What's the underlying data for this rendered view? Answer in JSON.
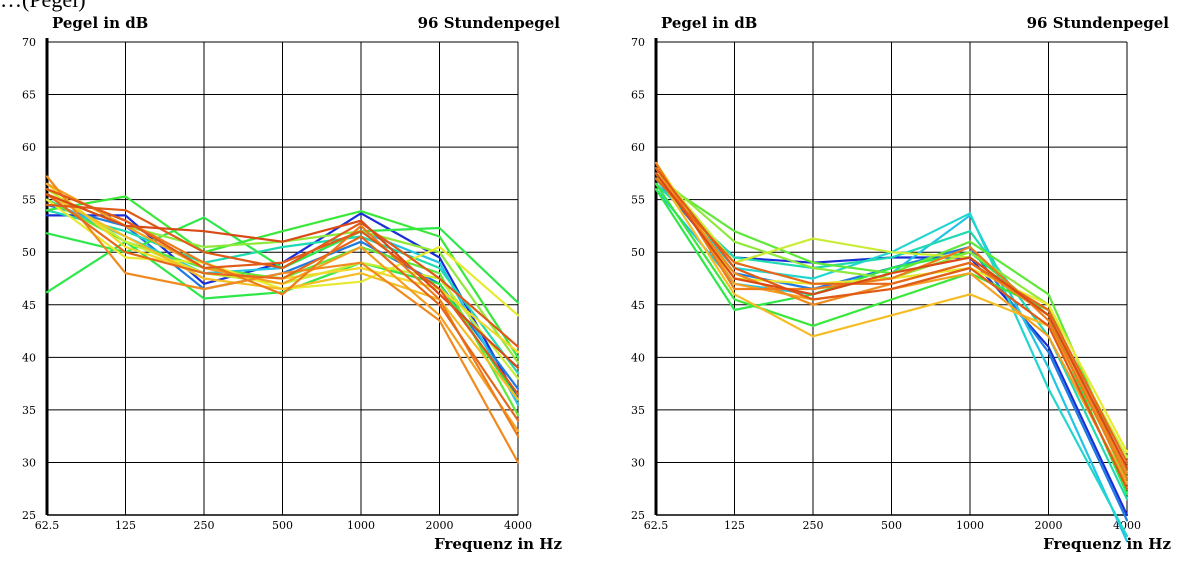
{
  "caption_fragment": "…(Pegel)",
  "chart_data": [
    {
      "type": "line",
      "title": "96 Stundenpegel",
      "ylabel": "Pegel in dB",
      "xlabel": "Frequenz in Hz",
      "categories": [
        "62.5",
        "125",
        "250",
        "500",
        "1000",
        "2000",
        "4000"
      ],
      "yticks": [
        "25",
        "30",
        "35",
        "40",
        "45",
        "50",
        "55",
        "60",
        "65",
        "70"
      ],
      "ylim": [
        25,
        70
      ],
      "grid": true,
      "series": [
        {
          "color": "#1a2fd6",
          "values": [
            53.5,
            53.5,
            47.0,
            49.0,
            53.7,
            49.5,
            36.0
          ]
        },
        {
          "color": "#1e7be0",
          "values": [
            54.5,
            52.5,
            46.5,
            48.0,
            51.0,
            47.0,
            37.0
          ]
        },
        {
          "color": "#22c3e6",
          "values": [
            55.0,
            51.5,
            48.0,
            48.5,
            52.0,
            49.0,
            35.5
          ]
        },
        {
          "color": "#1fd9b0",
          "values": [
            54.0,
            52.0,
            49.0,
            50.5,
            51.5,
            48.5,
            38.5
          ]
        },
        {
          "color": "#2ee84a",
          "values": [
            46.2,
            51.0,
            45.6,
            46.2,
            49.0,
            47.0,
            36.0
          ]
        },
        {
          "color": "#2ee84a",
          "values": [
            51.8,
            50.0,
            53.3,
            48.5,
            52.0,
            52.3,
            45.2
          ]
        },
        {
          "color": "#3ae83a",
          "values": [
            54.0,
            55.3,
            50.0,
            52.0,
            53.9,
            51.5,
            40.0
          ]
        },
        {
          "color": "#5fe83a",
          "values": [
            55.0,
            51.0,
            48.5,
            47.5,
            50.5,
            48.0,
            34.5
          ]
        },
        {
          "color": "#8fe83a",
          "values": [
            55.5,
            52.5,
            50.5,
            51.0,
            52.0,
            50.0,
            39.5
          ]
        },
        {
          "color": "#c9ec37",
          "values": [
            56.0,
            51.0,
            48.0,
            47.0,
            49.0,
            47.5,
            38.0
          ]
        },
        {
          "color": "#e8ea30",
          "values": [
            55.0,
            49.5,
            49.0,
            46.5,
            47.2,
            50.5,
            44.0
          ]
        },
        {
          "color": "#f2d82c",
          "values": [
            56.5,
            50.5,
            48.0,
            47.5,
            48.5,
            46.5,
            40.5
          ]
        },
        {
          "color": "#f5bd25",
          "values": [
            55.5,
            51.5,
            47.5,
            46.5,
            48.0,
            45.5,
            36.0
          ]
        },
        {
          "color": "#f5a021",
          "values": [
            56.5,
            52.5,
            48.5,
            47.0,
            50.5,
            44.0,
            33.0
          ]
        },
        {
          "color": "#f08a1e",
          "values": [
            57.2,
            48.0,
            46.5,
            48.0,
            49.0,
            43.5,
            30.0
          ]
        },
        {
          "color": "#ec7c1c",
          "values": [
            56.0,
            53.0,
            49.0,
            46.0,
            52.5,
            45.5,
            32.5
          ]
        },
        {
          "color": "#e6681a",
          "values": [
            55.5,
            50.0,
            48.0,
            47.5,
            51.5,
            45.0,
            34.0
          ]
        },
        {
          "color": "#e05a18",
          "values": [
            54.5,
            54.0,
            50.0,
            48.5,
            52.8,
            47.5,
            41.0
          ]
        },
        {
          "color": "#d94a16",
          "values": [
            55.5,
            52.5,
            52.0,
            51.0,
            53.0,
            46.0,
            39.0
          ]
        },
        {
          "color": "#e05a18",
          "values": [
            56.0,
            53.0,
            48.5,
            49.0,
            52.0,
            46.5,
            36.5
          ]
        }
      ]
    },
    {
      "type": "line",
      "title": "96 Stundenpegel",
      "ylabel": "Pegel in dB",
      "xlabel": "Frequenz in Hz",
      "categories": [
        "62.5",
        "125",
        "250",
        "500",
        "1000",
        "2000",
        "4000"
      ],
      "yticks": [
        "25",
        "30",
        "35",
        "40",
        "45",
        "50",
        "55",
        "60",
        "65",
        "70"
      ],
      "ylim": [
        25,
        70
      ],
      "grid": true,
      "series": [
        {
          "color": "#1a2fd6",
          "values": [
            56.5,
            49.5,
            49.0,
            49.5,
            49.5,
            41.0,
            25.0
          ]
        },
        {
          "color": "#1e7be0",
          "values": [
            57.0,
            48.0,
            46.5,
            48.5,
            50.5,
            40.5,
            24.5
          ]
        },
        {
          "color": "#22c3e6",
          "values": [
            56.0,
            47.0,
            46.0,
            48.0,
            53.5,
            39.0,
            22.5
          ]
        },
        {
          "color": "#22d6d0",
          "values": [
            57.0,
            48.5,
            47.5,
            50.0,
            53.7,
            37.0,
            23.0
          ]
        },
        {
          "color": "#1fd9b0",
          "values": [
            56.5,
            49.5,
            48.5,
            49.5,
            52.0,
            42.0,
            26.5
          ]
        },
        {
          "color": "#2ee84a",
          "values": [
            56.0,
            44.5,
            46.0,
            48.5,
            50.0,
            44.0,
            27.0
          ]
        },
        {
          "color": "#3ae83a",
          "values": [
            56.5,
            45.5,
            43.0,
            45.5,
            48.0,
            44.5,
            28.5
          ]
        },
        {
          "color": "#5fe83a",
          "values": [
            57.0,
            52.0,
            49.0,
            48.0,
            51.0,
            46.0,
            29.0
          ]
        },
        {
          "color": "#8fe83a",
          "values": [
            57.5,
            51.0,
            48.5,
            47.5,
            50.0,
            45.0,
            28.0
          ]
        },
        {
          "color": "#c9ec37",
          "values": [
            58.0,
            49.0,
            51.3,
            50.0,
            49.5,
            44.0,
            30.5
          ]
        },
        {
          "color": "#e8ea30",
          "values": [
            58.5,
            47.5,
            47.0,
            47.5,
            48.5,
            45.0,
            31.0
          ]
        },
        {
          "color": "#f5bd25",
          "values": [
            57.5,
            46.0,
            42.0,
            44.0,
            46.0,
            43.0,
            29.5
          ]
        },
        {
          "color": "#f5a021",
          "values": [
            58.0,
            47.0,
            45.5,
            46.5,
            48.0,
            42.0,
            28.0
          ]
        },
        {
          "color": "#f08a1e",
          "values": [
            57.5,
            48.0,
            45.0,
            47.0,
            49.0,
            44.0,
            29.0
          ]
        },
        {
          "color": "#ec7c1c",
          "values": [
            58.5,
            46.5,
            46.5,
            47.5,
            50.5,
            43.5,
            28.5
          ]
        },
        {
          "color": "#e6681a",
          "values": [
            57.0,
            49.0,
            47.0,
            47.0,
            49.0,
            44.5,
            30.0
          ]
        },
        {
          "color": "#e05a18",
          "values": [
            58.0,
            48.5,
            45.5,
            46.5,
            48.5,
            43.0,
            27.5
          ]
        },
        {
          "color": "#d94a16",
          "values": [
            57.5,
            47.5,
            46.0,
            48.0,
            49.5,
            44.0,
            29.5
          ]
        }
      ]
    }
  ]
}
